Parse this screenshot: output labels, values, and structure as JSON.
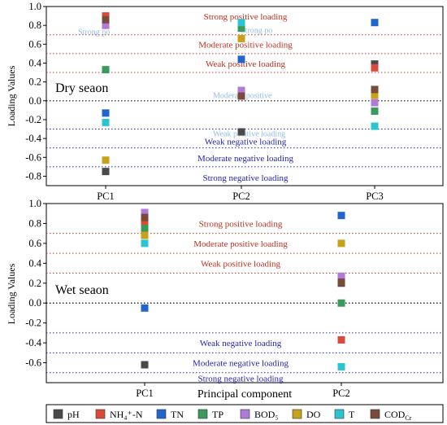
{
  "colors": {
    "pH": "#4a4a4a",
    "NH4": "#d94a3a",
    "TN": "#2266cc",
    "TP": "#3a9a5a",
    "BOD5": "#b07ad8",
    "DO": "#c8a21a",
    "T": "#2bc4d0",
    "COD": "#7a4a3a",
    "pos_line": "#c0392b",
    "zero_line": "#000000",
    "neg_line": "#2424b0"
  },
  "legend": {
    "pH": "pH",
    "NH4": "NH₄⁺-N",
    "TN": "TN",
    "TP": "TP",
    "BOD5": "BOD₅",
    "DO": "DO",
    "T": "T",
    "COD": "COD",
    "COD_sub": "Cr"
  },
  "x_title": "Principal component",
  "chart_data": [
    {
      "type": "scatter",
      "panel_label": "Dry seaon",
      "ylabel": "Loading Values",
      "ylim": [
        -0.9,
        1.0
      ],
      "yticks": [
        1.0,
        0.8,
        0.6,
        0.4,
        0.2,
        0.0,
        -0.2,
        -0.4,
        -0.6,
        -0.8
      ],
      "categories": [
        "PC1",
        "PC2",
        "PC3"
      ],
      "thresholds": [
        {
          "y": 0.7,
          "kind": "pos",
          "label": "Strong positive loading",
          "label_y": 0.895
        },
        {
          "y": 0.5,
          "kind": "pos",
          "label": "Moderate positive loading",
          "label_y": 0.6
        },
        {
          "y": 0.3,
          "kind": "pos",
          "label": "Weak positive loading",
          "label_y": 0.395
        },
        {
          "y": 0.0,
          "kind": "zero",
          "label": "",
          "label_y": null
        },
        {
          "y": -0.3,
          "kind": "neg",
          "label": "Weak  negative  loading",
          "label_y": -0.43
        },
        {
          "y": -0.5,
          "kind": "neg",
          "label": "Moderate  negative  loading",
          "label_y": -0.605
        },
        {
          "y": -0.7,
          "kind": "neg",
          "label": "Strong  negative  loading",
          "label_y": -0.815
        }
      ],
      "ghost_labels": [
        {
          "text": "Strong po",
          "x": 0.08,
          "y": 0.735
        },
        {
          "text": "Strong po",
          "x": 0.49,
          "y": 0.755
        },
        {
          "text": "Moderate positive",
          "x": 0.42,
          "y": 0.065
        },
        {
          "text": "Weak positive loading",
          "x": 0.42,
          "y": -0.345
        }
      ],
      "points": [
        {
          "pc": "PC1",
          "var": "pH",
          "value": -0.75
        },
        {
          "pc": "PC1",
          "var": "NH4",
          "value": 0.9
        },
        {
          "pc": "PC1",
          "var": "TN",
          "value": -0.13
        },
        {
          "pc": "PC1",
          "var": "TP",
          "value": 0.33
        },
        {
          "pc": "PC1",
          "var": "BOD5",
          "value": 0.8
        },
        {
          "pc": "PC1",
          "var": "DO",
          "value": -0.63
        },
        {
          "pc": "PC1",
          "var": "T",
          "value": -0.23
        },
        {
          "pc": "PC1",
          "var": "COD",
          "value": 0.86
        },
        {
          "pc": "PC2",
          "var": "pH",
          "value": -0.33
        },
        {
          "pc": "PC2",
          "var": "NH4",
          "value": 0.78
        },
        {
          "pc": "PC2",
          "var": "TN",
          "value": 0.44
        },
        {
          "pc": "PC2",
          "var": "TP",
          "value": 0.77
        },
        {
          "pc": "PC2",
          "var": "BOD5",
          "value": 0.11
        },
        {
          "pc": "PC2",
          "var": "DO",
          "value": 0.66
        },
        {
          "pc": "PC2",
          "var": "T",
          "value": 0.83
        },
        {
          "pc": "PC2",
          "var": "COD",
          "value": 0.05
        },
        {
          "pc": "PC3",
          "var": "pH",
          "value": 0.39
        },
        {
          "pc": "PC3",
          "var": "NH4",
          "value": 0.35
        },
        {
          "pc": "PC3",
          "var": "TN",
          "value": 0.83
        },
        {
          "pc": "PC3",
          "var": "TP",
          "value": -0.11
        },
        {
          "pc": "PC3",
          "var": "BOD5",
          "value": -0.02
        },
        {
          "pc": "PC3",
          "var": "DO",
          "value": 0.06
        },
        {
          "pc": "PC3",
          "var": "T",
          "value": -0.27
        },
        {
          "pc": "PC3",
          "var": "COD",
          "value": 0.12
        }
      ]
    },
    {
      "type": "scatter",
      "panel_label": "Wet seaon",
      "ylabel": "Loading Values",
      "ylim": [
        -0.8,
        1.0
      ],
      "yticks": [
        1.0,
        0.8,
        0.6,
        0.4,
        0.2,
        0.0,
        -0.2,
        -0.4,
        -0.6
      ],
      "categories": [
        "PC1",
        "PC2"
      ],
      "thresholds": [
        {
          "y": 0.7,
          "kind": "pos",
          "label": "Strong positive loading",
          "label_y": 0.8
        },
        {
          "y": 0.5,
          "kind": "pos",
          "label": "Moderate positive loading",
          "label_y": 0.6
        },
        {
          "y": 0.3,
          "kind": "pos",
          "label": "Weak positive loading",
          "label_y": 0.4
        },
        {
          "y": 0.0,
          "kind": "zero",
          "label": "",
          "label_y": null
        },
        {
          "y": -0.3,
          "kind": "neg",
          "label": "Weak  negative  loading",
          "label_y": -0.4
        },
        {
          "y": -0.5,
          "kind": "neg",
          "label": "Moderate  negative  loading",
          "label_y": -0.6
        },
        {
          "y": -0.7,
          "kind": "neg",
          "label": "Strong  negative  loading",
          "label_y": -0.755
        }
      ],
      "ghost_labels": [],
      "points": [
        {
          "pc": "PC1",
          "var": "pH",
          "value": -0.62
        },
        {
          "pc": "PC1",
          "var": "NH4",
          "value": 0.81
        },
        {
          "pc": "PC1",
          "var": "TN",
          "value": -0.05
        },
        {
          "pc": "PC1",
          "var": "TP",
          "value": 0.75
        },
        {
          "pc": "PC1",
          "var": "BOD5",
          "value": 0.91
        },
        {
          "pc": "PC1",
          "var": "DO",
          "value": 0.68
        },
        {
          "pc": "PC1",
          "var": "T",
          "value": 0.6
        },
        {
          "pc": "PC1",
          "var": "COD",
          "value": 0.86
        },
        {
          "pc": "PC2",
          "var": "pH",
          "value": 0.2
        },
        {
          "pc": "PC2",
          "var": "NH4",
          "value": -0.37
        },
        {
          "pc": "PC2",
          "var": "TN",
          "value": 0.88
        },
        {
          "pc": "PC2",
          "var": "TP",
          "value": 0.0
        },
        {
          "pc": "PC2",
          "var": "BOD5",
          "value": 0.27
        },
        {
          "pc": "PC2",
          "var": "DO",
          "value": 0.6
        },
        {
          "pc": "PC2",
          "var": "T",
          "value": -0.64
        },
        {
          "pc": "PC2",
          "var": "COD",
          "value": 0.21
        }
      ]
    }
  ]
}
